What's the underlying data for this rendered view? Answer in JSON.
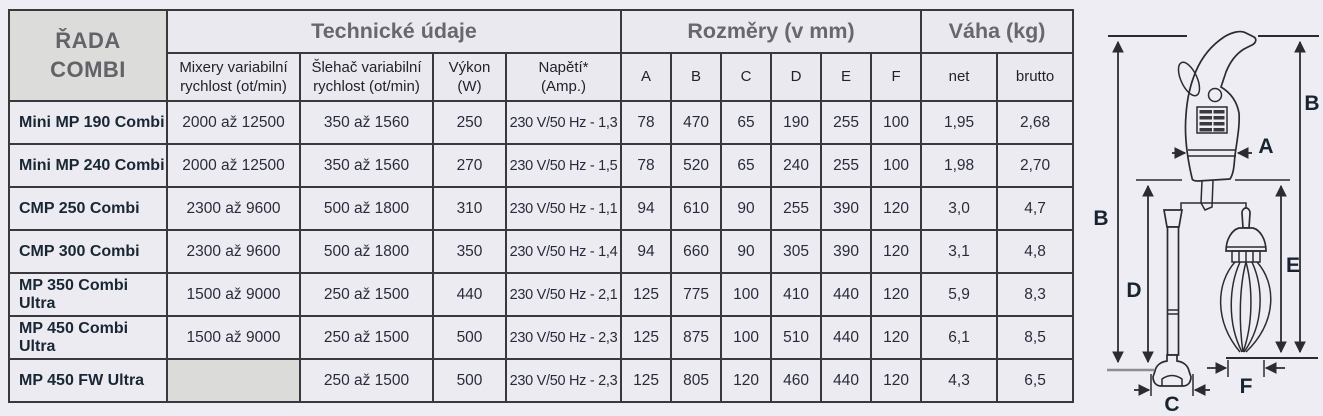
{
  "table": {
    "corner_header": "ŘADA\nCOMBI",
    "groups": [
      "Technické údaje",
      "Rozměry (v mm)",
      "Váha (kg)"
    ],
    "subheaders": [
      "Mixery variabilní\nrychlost (ot/min)",
      "Šlehač variabilní\nrychlost (ot/min)",
      "Výkon\n(W)",
      "Napětí*\n(Amp.)",
      "A",
      "B",
      "C",
      "D",
      "E",
      "F",
      "net",
      "brutto"
    ],
    "rows": [
      {
        "name": "Mini MP 190 Combi",
        "mixer": "2000 až 12500",
        "whisk": "350 až 1560",
        "power": "250",
        "voltage": "230 V/50 Hz - 1,3",
        "dims": [
          "78",
          "470",
          "65",
          "190",
          "255",
          "100"
        ],
        "net": "1,95",
        "brutto": "2,68"
      },
      {
        "name": "Mini MP 240 Combi",
        "mixer": "2000 až 12500",
        "whisk": "350 až 1560",
        "power": "270",
        "voltage": "230 V/50 Hz - 1,5",
        "dims": [
          "78",
          "520",
          "65",
          "240",
          "255",
          "100"
        ],
        "net": "1,98",
        "brutto": "2,70"
      },
      {
        "name": "CMP 250 Combi",
        "mixer": "2300 až 9600",
        "whisk": "500 až 1800",
        "power": "310",
        "voltage": "230 V/50 Hz - 1,1",
        "dims": [
          "94",
          "610",
          "90",
          "255",
          "390",
          "120"
        ],
        "net": "3,0",
        "brutto": "4,7"
      },
      {
        "name": "CMP 300 Combi",
        "mixer": "2300 až 9600",
        "whisk": "500 až 1800",
        "power": "350",
        "voltage": "230 V/50 Hz - 1,4",
        "dims": [
          "94",
          "660",
          "90",
          "305",
          "390",
          "120"
        ],
        "net": "3,1",
        "brutto": "4,8"
      },
      {
        "name": "MP 350 Combi Ultra",
        "mixer": "1500 až 9000",
        "whisk": "250 až 1500",
        "power": "440",
        "voltage": "230 V/50 Hz - 2,1",
        "dims": [
          "125",
          "775",
          "100",
          "410",
          "440",
          "120"
        ],
        "net": "5,9",
        "brutto": "8,3"
      },
      {
        "name": "MP 450 Combi Ultra",
        "mixer": "1500 až 9000",
        "whisk": "250 až 1500",
        "power": "500",
        "voltage": "230 V/50 Hz - 2,3",
        "dims": [
          "125",
          "875",
          "100",
          "510",
          "440",
          "120"
        ],
        "net": "6,1",
        "brutto": "8,5"
      },
      {
        "name": "MP 450 FW Ultra",
        "mixer": "",
        "whisk": "250 až 1500",
        "power": "500",
        "voltage": "230 V/50 Hz - 2,3",
        "dims": [
          "125",
          "805",
          "120",
          "460",
          "440",
          "120"
        ],
        "net": "4,3",
        "brutto": "6,5"
      }
    ]
  },
  "diagram": {
    "labels": {
      "a": "A",
      "b_left": "B",
      "b_right": "B",
      "c": "C",
      "d": "D",
      "e": "E",
      "f": "F"
    }
  },
  "colors": {
    "background": "#eeedf3",
    "header_bg": "#ebe9f0",
    "corner_bg": "#dcdcda",
    "cell_bg": "#edebf2",
    "empty_cell_bg": "#dbdcd9",
    "border": "#3a383c",
    "group_text": "#68676f",
    "value_text": "#282c3a"
  }
}
